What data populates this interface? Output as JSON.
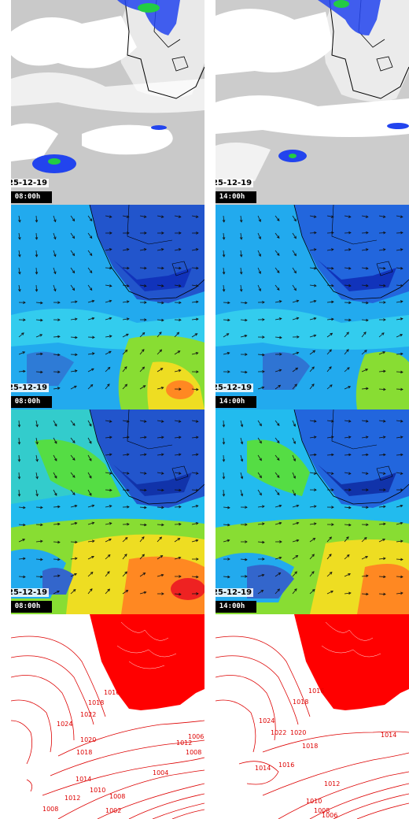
{
  "rows": [
    {
      "id": "cloud",
      "panels": [
        {
          "date": "25-12-19",
          "time": "08:00h"
        },
        {
          "date": "25-12-19",
          "time": "14:00h"
        }
      ]
    },
    {
      "id": "wind-low",
      "panels": [
        {
          "date": "25-12-19",
          "time": "08:00h"
        },
        {
          "date": "25-12-19",
          "time": "14:00h"
        }
      ]
    },
    {
      "id": "wind-high",
      "panels": [
        {
          "date": "25-12-19",
          "time": "08:00h"
        },
        {
          "date": "25-12-19",
          "time": "14:00h"
        }
      ]
    },
    {
      "id": "pressure",
      "panels": [
        {},
        {}
      ],
      "isobar_labels_left": [
        "1016",
        "1018",
        "1022",
        "1024",
        "1020",
        "1018",
        "1014",
        "1012",
        "1010",
        "1008",
        "1004",
        "1002",
        "1012",
        "1008",
        "1008",
        "1006"
      ],
      "isobar_labels_right": [
        "1016",
        "1018",
        "1024",
        "1022",
        "1020",
        "1018",
        "1014",
        "1016",
        "1014",
        "1012",
        "1010",
        "1008",
        "1006"
      ]
    }
  ],
  "colors": {
    "land": "#ff0000",
    "isobar": "#dd0000",
    "label_bg": "#000000",
    "label_text": "#ffffff"
  }
}
